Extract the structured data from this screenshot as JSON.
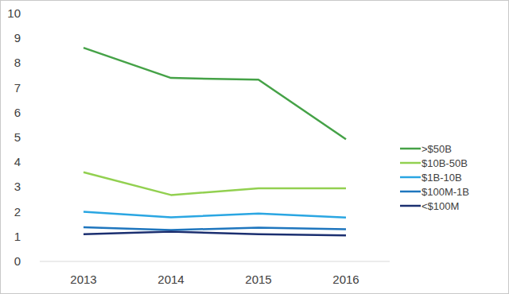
{
  "chart_data": {
    "type": "line",
    "categories": [
      "2013",
      "2014",
      "2015",
      "2016"
    ],
    "series": [
      {
        "name": ">$50B",
        "color": "#45a247",
        "values": [
          8.62,
          7.4,
          7.33,
          4.93
        ]
      },
      {
        "name": "$10B-50B",
        "color": "#92d050",
        "values": [
          3.6,
          2.68,
          2.95,
          2.95
        ]
      },
      {
        "name": "$1B-10B",
        "color": "#2aa6e2",
        "values": [
          2.0,
          1.78,
          1.93,
          1.77
        ]
      },
      {
        "name": "$100M-1B",
        "color": "#1f76be",
        "values": [
          1.38,
          1.27,
          1.36,
          1.3
        ]
      },
      {
        "name": "<$100M",
        "color": "#1b2f70",
        "values": [
          1.1,
          1.2,
          1.1,
          1.05
        ]
      }
    ],
    "ylim": [
      0,
      10
    ],
    "yticks": [
      0,
      1,
      2,
      3,
      4,
      5,
      6,
      7,
      8,
      9,
      10
    ],
    "grid": false,
    "legend": "right"
  }
}
